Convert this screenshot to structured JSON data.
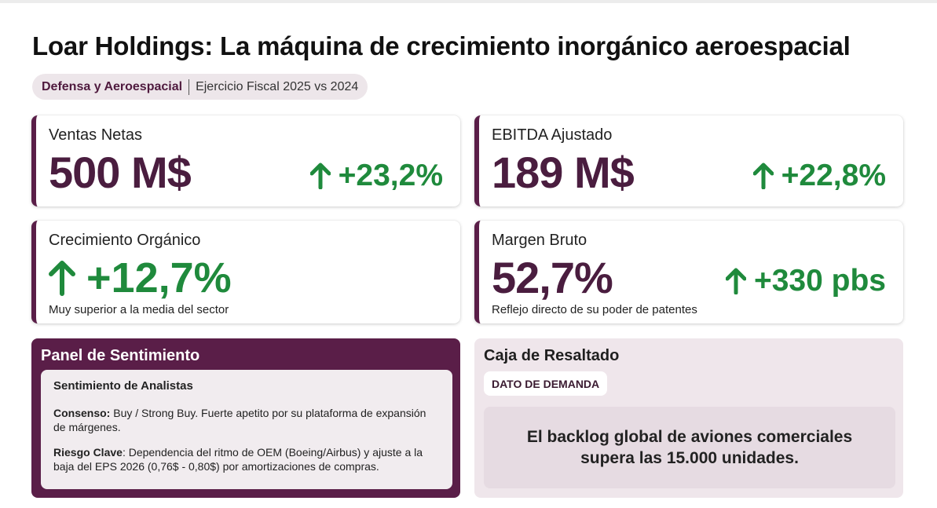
{
  "header": {
    "title": "Loar Holdings: La máquina de crecimiento inorgánico aeroespacial",
    "sector": "Defensa y Aeroespacial",
    "period": "Ejercicio Fiscal 2025 vs 2024"
  },
  "metrics": {
    "net_sales": {
      "label": "Ventas Netas",
      "value": "500 M$",
      "delta": "+23,2%"
    },
    "ebitda": {
      "label": "EBITDA Ajustado",
      "value": "189 M$",
      "delta": "+22,8%"
    },
    "organic": {
      "label": "Crecimiento Orgánico",
      "value": "+12,7%",
      "note": "Muy superior a la media del sector"
    },
    "gross_margin": {
      "label": "Margen Bruto",
      "value": "52,7%",
      "delta": "+330 pbs",
      "note": "Reflejo directo de su poder de patentes"
    }
  },
  "sentiment_panel": {
    "title": "Panel de Sentimiento",
    "subtitle": "Sentimiento de Analistas",
    "consensus_label": "Consenso:",
    "consensus_text": " Buy / Strong Buy. Fuerte apetito por su plataforma de expansión de márgenes.",
    "risk_label": "Riesgo Clave",
    "risk_text": ": Dependencia del ritmo de OEM (Boeing/Airbus) y ajuste a la baja del EPS 2026 (0,76$ - 0,80$) por amortizaciones de compras."
  },
  "highlight_box": {
    "title": "Caja de Resaltado",
    "tag": "DATO DE DEMANDA",
    "text": "El backlog global de aviones comerciales supera las 15.000 unidades."
  },
  "colors": {
    "brand": "#5a1e48",
    "value": "#4a1d3f",
    "positive": "#1f8a3c",
    "highlight_bg": "#efe6eb"
  },
  "icons": {
    "delta": "arrow-up-icon"
  }
}
